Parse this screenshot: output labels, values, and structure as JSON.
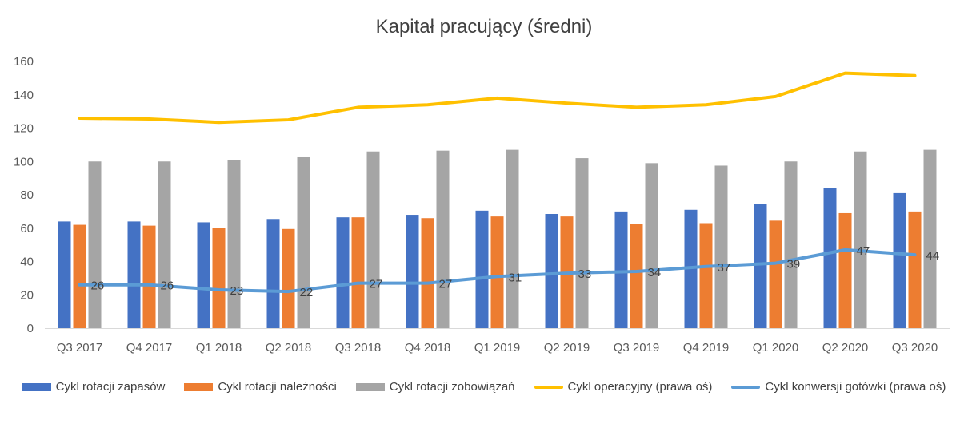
{
  "chart_data": {
    "type": "bar",
    "title": "Kapitał pracujący (średni)",
    "categories": [
      "Q3 2017",
      "Q4 2017",
      "Q1 2018",
      "Q2 2018",
      "Q3 2018",
      "Q4 2018",
      "Q1 2019",
      "Q2 2019",
      "Q3 2019",
      "Q4 2019",
      "Q1 2020",
      "Q2 2020",
      "Q3 2020"
    ],
    "ylim": [
      0,
      160
    ],
    "yticks": [
      "0",
      "20",
      "40",
      "60",
      "80",
      "100",
      "120",
      "140",
      "160"
    ],
    "grid": false,
    "legend_position": "bottom",
    "series": [
      {
        "name": "Cykl rotacji zapasów",
        "type": "bar",
        "color": "#4472C4",
        "values": [
          64,
          64,
          63.5,
          65.5,
          66.5,
          68,
          70.5,
          68.5,
          70,
          71,
          74.5,
          84,
          81
        ]
      },
      {
        "name": "Cykl rotacji należności",
        "type": "bar",
        "color": "#ED7D31",
        "values": [
          62,
          61.5,
          60,
          59.5,
          66.5,
          66,
          67,
          67,
          62.5,
          63,
          64.5,
          69,
          70
        ]
      },
      {
        "name": "Cykl rotacji zobowiązań",
        "type": "bar",
        "color": "#A5A5A5",
        "values": [
          100,
          100,
          101,
          103,
          106,
          106.5,
          107,
          102,
          99,
          97.5,
          100,
          106,
          107
        ]
      },
      {
        "name": "Cykl operacyjny (prawa oś)",
        "type": "line",
        "color": "#FFC000",
        "values": [
          126,
          125.5,
          123.5,
          125,
          132.5,
          134,
          138,
          135,
          132.5,
          134,
          139,
          153,
          151.5
        ]
      },
      {
        "name": "Cykl konwersji gotówki (prawa oś)",
        "type": "line",
        "color": "#5B9BD5",
        "values": [
          26,
          26,
          23,
          22,
          27,
          27,
          31,
          33,
          34,
          37,
          39,
          47,
          44
        ],
        "data_labels": [
          "26",
          "26",
          "23",
          "22",
          "27",
          "27",
          "31",
          "33",
          "34",
          "37",
          "39",
          "47",
          "44"
        ]
      }
    ]
  }
}
